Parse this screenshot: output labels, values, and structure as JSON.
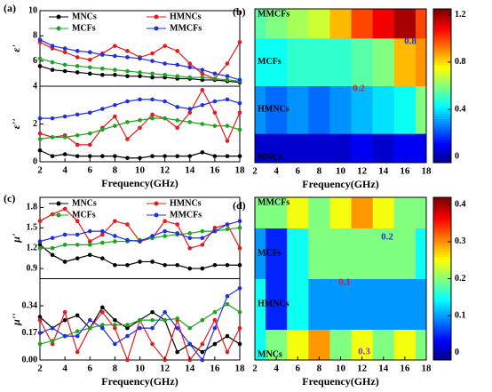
{
  "chart_data": [
    {
      "panel": "(a)",
      "type": "line",
      "xlabel": "Frequency(GHz)",
      "x": [
        2,
        3,
        4,
        5,
        6,
        7,
        8,
        9,
        10,
        11,
        12,
        13,
        14,
        15,
        16,
        17,
        18
      ],
      "xlim": [
        2,
        18
      ],
      "xticks": [
        2,
        4,
        6,
        8,
        10,
        12,
        14,
        16,
        18
      ],
      "legend": [
        {
          "name": "MNCs",
          "color": "#000000"
        },
        {
          "name": "HMNCs",
          "color": "#e8191c"
        },
        {
          "name": "MCFs",
          "color": "#1fa31f"
        },
        {
          "name": "MMCFs",
          "color": "#1f2fe0"
        }
      ],
      "subplots": [
        {
          "ylabel": "ε'",
          "ylim": [
            4,
            10
          ],
          "yticks": [
            6,
            8,
            10
          ],
          "values": [
            [
              5.6,
              5.3,
              5.2,
              5.1,
              5.0,
              4.9,
              4.9,
              4.8,
              4.8,
              4.7,
              4.7,
              4.6,
              4.6,
              4.5,
              4.5,
              4.4,
              4.3
            ],
            [
              7.5,
              7.0,
              6.7,
              6.3,
              6.1,
              6.6,
              7.2,
              6.8,
              6.3,
              6.6,
              7.2,
              6.8,
              5.8,
              5.0,
              4.6,
              5.8,
              7.5
            ],
            [
              6.2,
              5.9,
              5.7,
              5.6,
              5.5,
              5.4,
              5.3,
              5.2,
              5.1,
              5.0,
              4.9,
              4.8,
              4.7,
              4.7,
              4.6,
              4.5,
              4.4
            ],
            [
              7.7,
              7.2,
              7.0,
              6.8,
              6.7,
              6.5,
              6.4,
              6.3,
              6.2,
              6.0,
              5.8,
              5.7,
              5.5,
              5.3,
              5.0,
              4.8,
              4.5
            ]
          ]
        },
        {
          "ylabel": "ε''",
          "ylim": [
            0,
            4
          ],
          "yticks": [
            0,
            2,
            4
          ],
          "values": [
            [
              0.6,
              0.3,
              0.4,
              0.3,
              0.3,
              0.3,
              0.3,
              0.2,
              0.2,
              0.3,
              0.3,
              0.3,
              0.3,
              0.5,
              0.3,
              0.3,
              0.3
            ],
            [
              1.5,
              1.3,
              1.4,
              0.9,
              0.9,
              1.8,
              2.4,
              1.2,
              1.8,
              2.5,
              2.3,
              1.8,
              2.6,
              3.8,
              2.6,
              1.1,
              2.6
            ],
            [
              1.2,
              1.3,
              1.3,
              1.4,
              1.5,
              1.7,
              1.9,
              2.1,
              2.2,
              2.3,
              2.3,
              2.2,
              2.1,
              2.0,
              1.9,
              1.9,
              1.7
            ],
            [
              2.3,
              2.3,
              2.4,
              2.5,
              2.6,
              2.8,
              3.0,
              3.2,
              3.3,
              3.3,
              3.2,
              2.9,
              2.8,
              3.0,
              3.2,
              3.3,
              3.1
            ]
          ]
        }
      ]
    },
    {
      "panel": "(b)",
      "type": "contour",
      "xlabel": "Frequency(GHz)",
      "x": [
        2,
        4,
        6,
        8,
        10,
        12,
        14,
        16,
        18
      ],
      "xlim": [
        2,
        18
      ],
      "xticks": [
        2,
        4,
        6,
        8,
        10,
        12,
        14,
        16,
        18
      ],
      "categories": [
        "MNCs",
        "HMNCs",
        "MCFs",
        "MMCFs"
      ],
      "z": [
        [
          0.05,
          0.05,
          0.05,
          0.05,
          0.05,
          0.1,
          0.05,
          0.1,
          0.1
        ],
        [
          0.3,
          0.25,
          0.3,
          0.25,
          0.3,
          0.35,
          0.4,
          0.45,
          0.6
        ],
        [
          0.45,
          0.45,
          0.5,
          0.5,
          0.5,
          0.55,
          0.6,
          0.85,
          0.9
        ],
        [
          0.55,
          0.6,
          0.65,
          0.7,
          0.85,
          1.0,
          1.1,
          1.2,
          1.0
        ]
      ],
      "zlim": [
        -0.05,
        1.25
      ],
      "colorbar_ticks": [
        0,
        0.4,
        0.8,
        1.2
      ],
      "contour_labels": [
        "0.8",
        "0.2"
      ]
    },
    {
      "panel": "(c)",
      "type": "line",
      "xlabel": "Frequency(GHz)",
      "x": [
        2,
        3,
        4,
        5,
        6,
        7,
        8,
        9,
        10,
        11,
        12,
        13,
        14,
        15,
        16,
        17,
        18
      ],
      "xlim": [
        2,
        18
      ],
      "xticks": [
        2,
        4,
        6,
        8,
        10,
        12,
        14,
        16,
        18
      ],
      "legend": [
        {
          "name": "MNCs",
          "color": "#000000"
        },
        {
          "name": "HMNCs",
          "color": "#e8191c"
        },
        {
          "name": "MCFs",
          "color": "#1fa31f"
        },
        {
          "name": "MMCFs",
          "color": "#1f2fe0"
        }
      ],
      "subplots": [
        {
          "ylabel": "μ'",
          "ylim": [
            0.75,
            1.95
          ],
          "yticks": [
            0.9,
            1.2,
            1.5,
            1.8
          ],
          "values": [
            [
              1.25,
              1.1,
              1.0,
              1.05,
              1.1,
              1.05,
              0.95,
              0.95,
              1.0,
              1.0,
              0.95,
              0.95,
              0.9,
              0.9,
              0.95,
              0.95,
              0.95
            ],
            [
              1.6,
              1.7,
              1.78,
              1.6,
              1.3,
              1.4,
              1.6,
              1.55,
              1.3,
              1.35,
              1.6,
              1.55,
              1.2,
              1.25,
              1.5,
              1.55,
              1.2
            ],
            [
              1.2,
              1.2,
              1.25,
              1.25,
              1.25,
              1.28,
              1.3,
              1.3,
              1.32,
              1.35,
              1.38,
              1.4,
              1.42,
              1.45,
              1.45,
              1.48,
              1.5
            ],
            [
              1.3,
              1.35,
              1.4,
              1.4,
              1.45,
              1.45,
              1.38,
              1.32,
              1.3,
              1.38,
              1.45,
              1.42,
              1.35,
              1.35,
              1.45,
              1.55,
              1.6
            ]
          ]
        },
        {
          "ylabel": "μ''",
          "ylim": [
            0,
            0.51
          ],
          "yticks": [
            {
              "value": 0,
              "label": "0.00"
            },
            0.17,
            0.34
          ],
          "values": [
            [
              0.27,
              0.2,
              0.25,
              0.28,
              0.2,
              0.33,
              0.25,
              0.2,
              0.25,
              0.3,
              0.25,
              0.05,
              0.1,
              0.05,
              0.1,
              0.15,
              0.1
            ],
            [
              0.25,
              0.1,
              0.3,
              0.05,
              0.2,
              0.3,
              0.2,
              0.0,
              0.25,
              0.1,
              0.0,
              0.25,
              0.0,
              0.1,
              0.25,
              0.05,
              0.2
            ],
            [
              0.1,
              0.12,
              0.15,
              0.18,
              0.2,
              0.22,
              0.22,
              0.22,
              0.25,
              0.25,
              0.25,
              0.26,
              0.2,
              0.25,
              0.3,
              0.35,
              0.3
            ],
            [
              0.17,
              0.2,
              0.15,
              0.15,
              0.25,
              0.2,
              0.1,
              0.15,
              0.2,
              0.2,
              0.3,
              0.2,
              0.1,
              0.0,
              0.2,
              0.4,
              0.45
            ]
          ]
        }
      ]
    },
    {
      "panel": "(d)",
      "type": "contour",
      "xlabel": "Frequency(GHz)",
      "x": [
        2,
        4,
        6,
        8,
        10,
        12,
        14,
        16,
        18
      ],
      "xlim": [
        2,
        18
      ],
      "xticks": [
        2,
        4,
        6,
        8,
        10,
        12,
        14,
        16,
        18
      ],
      "categories": [
        "MNCs",
        "HMNCs",
        "MCFs",
        "MMCFs"
      ],
      "z": [
        [
          0.15,
          0.2,
          0.25,
          0.3,
          0.2,
          0.25,
          0.2,
          0.25,
          0.2
        ],
        [
          0.15,
          0.05,
          0.15,
          0.1,
          0.1,
          0.1,
          0.1,
          0.1,
          0.1
        ],
        [
          0.1,
          0.05,
          0.15,
          0.2,
          0.2,
          0.2,
          0.2,
          0.2,
          0.15
        ],
        [
          0.2,
          0.2,
          0.25,
          0.2,
          0.25,
          0.3,
          0.25,
          0.2,
          0.2
        ]
      ],
      "zlim": [
        -0.02,
        0.42
      ],
      "colorbar_ticks": [
        0,
        0.1,
        0.2,
        0.3,
        0.4
      ],
      "contour_labels": [
        "0.2",
        "0.1",
        "0.3"
      ]
    }
  ]
}
